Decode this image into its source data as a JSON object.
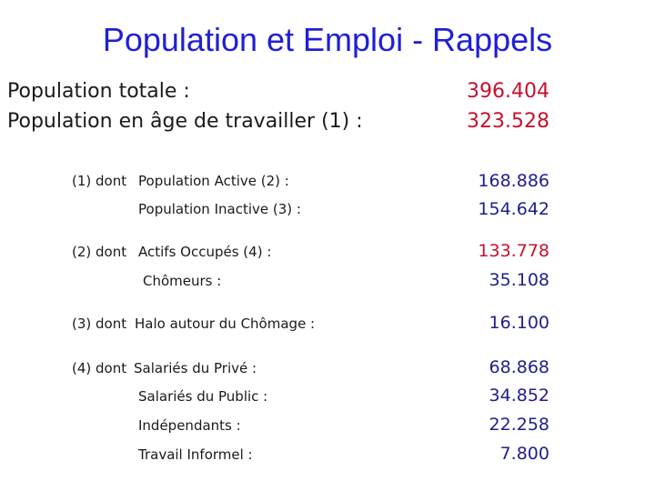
{
  "title": "Population et Emploi - Rappels",
  "main": [
    {
      "label": "Population totale :",
      "value": "396.404"
    },
    {
      "label": "Population en âge de travailler (1) :",
      "value": "323.528"
    }
  ],
  "group1": {
    "prefix": "(1) dont",
    "rows": [
      {
        "label": "Population Active (2) :",
        "value": "168.886"
      },
      {
        "label": "Population Inactive (3) :",
        "value": "154.642"
      }
    ]
  },
  "group2": {
    "prefix": "(2)  dont",
    "rows": [
      {
        "label": "Actifs Occupés (4) :",
        "value": "133.778"
      },
      {
        "label": "Chômeurs :",
        "value": "35.108"
      }
    ]
  },
  "group3": {
    "prefix": "(3) dont",
    "rows": [
      {
        "label": "Halo autour du Chômage :",
        "value": "16.100"
      }
    ]
  },
  "group4": {
    "prefix": "(4) dont",
    "rows": [
      {
        "label": "Salariés du Privé :",
        "value": "68.868"
      },
      {
        "label": "Salariés du Public :",
        "value": "34.852"
      },
      {
        "label": "Indépendants :",
        "value": "22.258"
      },
      {
        "label": "Travail Informel :",
        "value": "7.800"
      }
    ]
  }
}
